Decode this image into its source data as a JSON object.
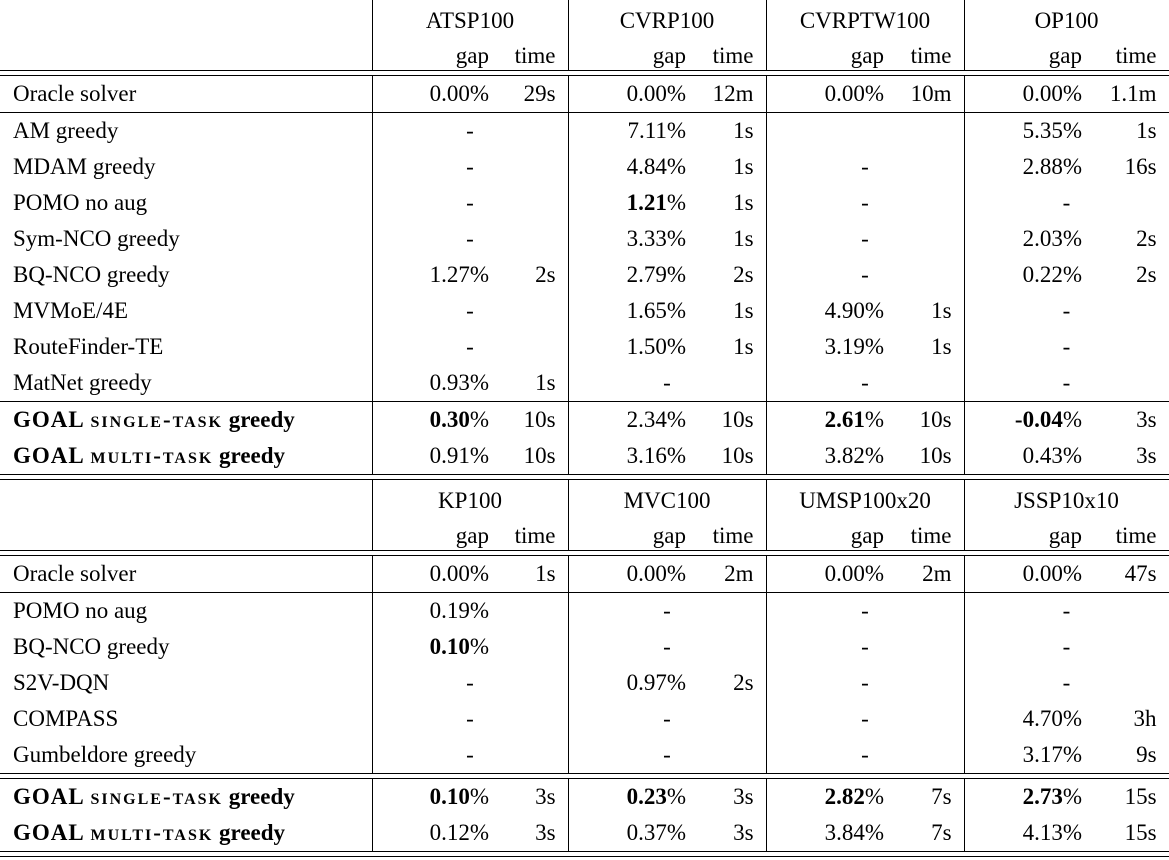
{
  "symbols": {
    "percent": "%",
    "dash": "-"
  },
  "tables": [
    {
      "columns": [
        {
          "name": "ATSP100",
          "gap_label": "gap",
          "time_label": "time"
        },
        {
          "name": "CVRP100",
          "gap_label": "gap",
          "time_label": "time"
        },
        {
          "name": "CVRPTW100",
          "gap_label": "gap",
          "time_label": "time"
        },
        {
          "name": "OP100",
          "gap_label": "gap",
          "time_label": "time"
        }
      ],
      "rows": [
        {
          "method": "Oracle solver",
          "sep_after": "single",
          "cells": [
            {
              "gap": "0.00",
              "time": "29s"
            },
            {
              "gap": "0.00",
              "time": "12m"
            },
            {
              "gap": "0.00",
              "time": "10m"
            },
            {
              "gap": "0.00",
              "time": "1.1m"
            }
          ]
        },
        {
          "method": "AM greedy",
          "cells": [
            {
              "dash": true
            },
            {
              "gap": "7.11",
              "time": "1s"
            },
            {},
            {
              "gap": "5.35",
              "time": "1s"
            }
          ]
        },
        {
          "method": "MDAM greedy",
          "cells": [
            {
              "dash": true
            },
            {
              "gap": "4.84",
              "time": "1s"
            },
            {
              "dash": true
            },
            {
              "gap": "2.88",
              "time": "16s"
            }
          ]
        },
        {
          "method": "POMO no aug",
          "cells": [
            {
              "dash": true
            },
            {
              "gap": "1.21",
              "gap_bold": true,
              "time": "1s"
            },
            {
              "dash": true
            },
            {
              "dash": true
            }
          ]
        },
        {
          "method": "Sym-NCO greedy",
          "cells": [
            {
              "dash": true
            },
            {
              "gap": "3.33",
              "time": "1s"
            },
            {
              "dash": true
            },
            {
              "gap": "2.03",
              "time": "2s"
            }
          ]
        },
        {
          "method": "BQ-NCO greedy",
          "cells": [
            {
              "gap": "1.27",
              "time": "2s"
            },
            {
              "gap": "2.79",
              "time": "2s"
            },
            {
              "dash": true
            },
            {
              "gap": "0.22",
              "time": "2s"
            }
          ]
        },
        {
          "method": "MVMoE/4E",
          "cells": [
            {
              "dash": true
            },
            {
              "gap": "1.65",
              "time": "1s"
            },
            {
              "gap": "4.90",
              "time": "1s"
            },
            {
              "dash": true
            }
          ]
        },
        {
          "method": "RouteFinder-TE",
          "cells": [
            {
              "dash": true
            },
            {
              "gap": "1.50",
              "time": "1s"
            },
            {
              "gap": "3.19",
              "time": "1s"
            },
            {
              "dash": true
            }
          ]
        },
        {
          "method": "MatNet greedy",
          "sep_after": "single",
          "cells": [
            {
              "gap": "0.93",
              "time": "1s"
            },
            {
              "dash": true
            },
            {
              "dash": true
            },
            {
              "dash": true
            }
          ]
        },
        {
          "method_parts": {
            "prefix": "GOAL",
            "smallcaps": "single-task",
            "suffix": "greedy"
          },
          "bold_label": true,
          "cells": [
            {
              "gap": "0.30",
              "gap_bold": true,
              "time": "10s"
            },
            {
              "gap": "2.34",
              "time": "10s"
            },
            {
              "gap": "2.61",
              "gap_bold": true,
              "time": "10s"
            },
            {
              "gap": "-0.04",
              "gap_bold": true,
              "time": "3s"
            }
          ]
        },
        {
          "method_parts": {
            "prefix": "GOAL",
            "smallcaps": "multi-task",
            "suffix": "greedy"
          },
          "bold_label": true,
          "cells": [
            {
              "gap": "0.91",
              "time": "10s"
            },
            {
              "gap": "3.16",
              "time": "10s"
            },
            {
              "gap": "3.82",
              "time": "10s"
            },
            {
              "gap": "0.43",
              "time": "3s"
            }
          ]
        }
      ]
    },
    {
      "columns": [
        {
          "name": "KP100",
          "gap_label": "gap",
          "time_label": "time"
        },
        {
          "name": "MVC100",
          "gap_label": "gap",
          "time_label": "time"
        },
        {
          "name": "UMSP100x20",
          "gap_label": "gap",
          "time_label": "time"
        },
        {
          "name": "JSSP10x10",
          "gap_label": "gap",
          "time_label": "time"
        }
      ],
      "rows": [
        {
          "method": "Oracle solver",
          "sep_after": "single",
          "cells": [
            {
              "gap": "0.00",
              "time": "1s"
            },
            {
              "gap": "0.00",
              "time": "2m"
            },
            {
              "gap": "0.00",
              "time": "2m"
            },
            {
              "gap": "0.00",
              "time": "47s"
            }
          ]
        },
        {
          "method": "POMO no aug",
          "cells": [
            {
              "gap": "0.19"
            },
            {
              "dash": true
            },
            {
              "dash": true
            },
            {
              "dash": true
            }
          ]
        },
        {
          "method": "BQ-NCO greedy",
          "cells": [
            {
              "gap": "0.10",
              "gap_bold": true
            },
            {
              "dash": true
            },
            {
              "dash": true
            },
            {
              "dash": true
            }
          ]
        },
        {
          "method": "S2V-DQN",
          "cells": [
            {
              "dash": true
            },
            {
              "gap": "0.97",
              "time": "2s"
            },
            {
              "dash": true
            },
            {
              "dash": true
            }
          ]
        },
        {
          "method": "COMPASS",
          "cells": [
            {
              "dash": true
            },
            {
              "dash": true
            },
            {
              "dash": true
            },
            {
              "gap": "4.70",
              "time": "3h"
            }
          ]
        },
        {
          "method": "Gumbeldore greedy",
          "sep_after": "double",
          "cells": [
            {
              "dash": true
            },
            {
              "dash": true
            },
            {
              "dash": true
            },
            {
              "gap": "3.17",
              "time": "9s"
            }
          ]
        },
        {
          "method_parts": {
            "prefix": "GOAL",
            "smallcaps": "single-task",
            "suffix": "greedy"
          },
          "bold_label": true,
          "cells": [
            {
              "gap": "0.10",
              "gap_bold": true,
              "time": "3s"
            },
            {
              "gap": "0.23",
              "gap_bold": true,
              "time": "3s"
            },
            {
              "gap": "2.82",
              "gap_bold": true,
              "time": "7s"
            },
            {
              "gap": "2.73",
              "gap_bold": true,
              "time": "15s"
            }
          ]
        },
        {
          "method_parts": {
            "prefix": "GOAL",
            "smallcaps": "multi-task",
            "suffix": "greedy"
          },
          "bold_label": true,
          "cells": [
            {
              "gap": "0.12",
              "time": "3s"
            },
            {
              "gap": "0.37",
              "time": "3s"
            },
            {
              "gap": "3.84",
              "time": "7s"
            },
            {
              "gap": "4.13",
              "time": "15s"
            }
          ]
        }
      ]
    }
  ]
}
